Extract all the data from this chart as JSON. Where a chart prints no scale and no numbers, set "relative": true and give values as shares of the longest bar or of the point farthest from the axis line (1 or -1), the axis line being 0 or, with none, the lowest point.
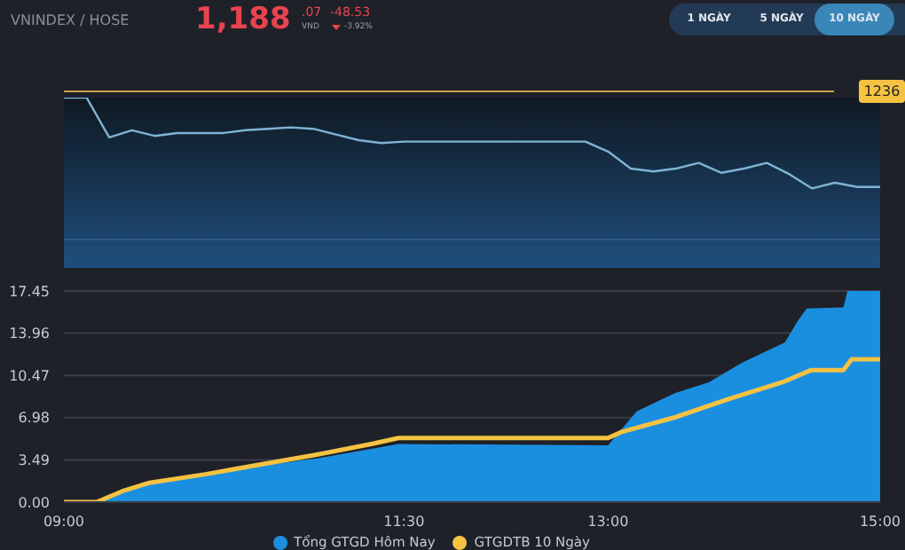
{
  "chart_data": [
    {
      "type": "other",
      "title": "VNINDEX / HOSE",
      "annotations": [
        "1,188",
        ".07",
        "VND",
        "-48.53",
        "-3.92%",
        "1 NGÀY",
        "5 NGÀY",
        "10 NGÀY"
      ]
    },
    {
      "type": "line",
      "relative": true,
      "grid": false,
      "legend": false,
      "marker": "none",
      "categories": [
        null,
        null,
        null,
        null,
        null,
        null,
        null,
        null,
        null,
        null,
        null,
        null,
        null,
        null,
        null,
        null,
        null,
        null,
        null,
        null,
        null,
        null,
        null,
        null,
        null,
        null,
        null,
        null,
        null,
        null,
        null,
        null,
        null,
        null,
        null,
        null,
        null
      ],
      "series": [
        {
          "color": "#7fb3d5",
          "values": [
            1,
            1,
            0.72,
            0.77,
            0.73,
            0.75,
            0.75,
            0.75,
            0.77,
            0.78,
            0.79,
            0.78,
            0.74,
            0.7,
            0.68,
            0.69,
            0.69,
            0.69,
            0.69,
            0.69,
            0.69,
            0.69,
            0.69,
            0.69,
            0.62,
            0.5,
            0.48,
            0.5,
            0.54,
            0.47,
            0.5,
            0.54,
            0.46,
            0.36,
            0.4,
            0.37,
            0.37
          ]
        }
      ],
      "annotations": [
        "1236"
      ]
    },
    {
      "type": "area",
      "grid": "y",
      "legend": "bottom",
      "xlim": [
        9,
        15
      ],
      "ylim": [
        0,
        17.45
      ],
      "xticks": [
        {
          "value": 9,
          "label": "09:00"
        },
        {
          "value": 11.5,
          "label": "11:30"
        },
        {
          "value": 13,
          "label": "13:00"
        },
        {
          "value": 15,
          "label": "15:00"
        }
      ],
      "yticks": [
        {
          "value": 0,
          "label": "0.00"
        },
        3.49,
        6.98,
        10.47,
        13.96,
        17.45
      ],
      "series": [
        {
          "name": "Tổng GTGD Hôm Nay",
          "color": "#1a8fe0",
          "x": [
            9,
            9.24,
            9.43,
            9.63,
            10.04,
            10.44,
            10.85,
            11.26,
            11.46,
            13.0,
            13.21,
            13.49,
            13.74,
            13.98,
            14.3,
            14.39,
            14.46,
            14.73,
            14.76,
            15.0
          ],
          "values": [
            0,
            0,
            0.9,
            1.6,
            2.3,
            3.0,
            3.6,
            4.4,
            4.8,
            4.7,
            7.5,
            9.0,
            9.9,
            11.5,
            13.2,
            14.9,
            16.0,
            16.1,
            17.45,
            17.45
          ]
        },
        {
          "name": "GTGDTB 10 Ngày",
          "type": "line",
          "color": "#f5c242",
          "x": [
            9,
            9.24,
            9.43,
            9.63,
            10.04,
            10.44,
            10.85,
            11.26,
            11.46,
            13.0,
            13.1,
            13.49,
            13.88,
            14.28,
            14.49,
            14.73,
            14.79,
            15.0
          ],
          "values": [
            0,
            0,
            0.9,
            1.6,
            2.3,
            3.1,
            3.9,
            4.8,
            5.3,
            5.3,
            5.8,
            7.0,
            8.5,
            9.9,
            10.9,
            10.9,
            11.8,
            11.8
          ]
        }
      ]
    }
  ]
}
